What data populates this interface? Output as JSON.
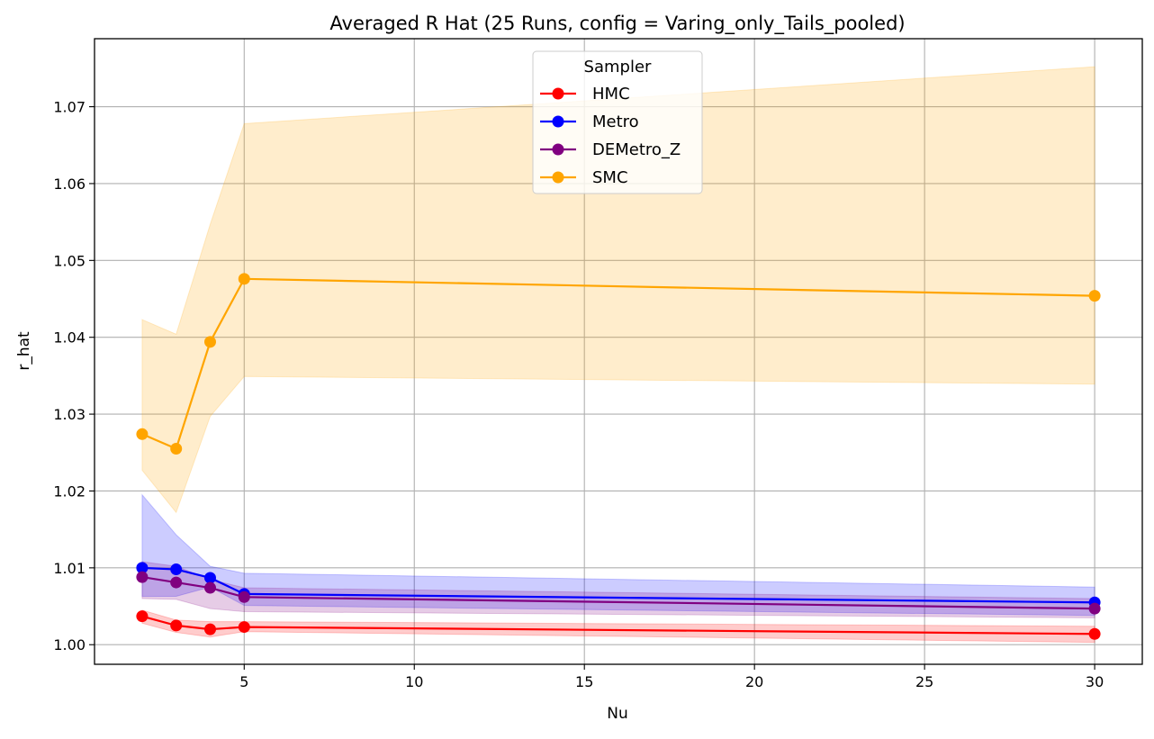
{
  "chart_data": {
    "type": "line",
    "title": "Averaged R Hat (25 Runs, config = Varing_only_Tails_pooled)",
    "xlabel": "Nu",
    "ylabel": "r_hat",
    "xlim": [
      0.6,
      31.4
    ],
    "ylim": [
      0.99745,
      1.07885
    ],
    "xticks": [
      5,
      10,
      15,
      20,
      25,
      30
    ],
    "xtick_labels": [
      "5",
      "10",
      "15",
      "20",
      "25",
      "30"
    ],
    "yticks": [
      1.0,
      1.01,
      1.02,
      1.03,
      1.04,
      1.05,
      1.06,
      1.07
    ],
    "ytick_labels": [
      "1.00",
      "1.01",
      "1.02",
      "1.03",
      "1.04",
      "1.05",
      "1.06",
      "1.07"
    ],
    "grid": true,
    "legend_title": "Sampler",
    "legend_position": "top-center",
    "x": [
      2,
      3,
      4,
      5,
      30
    ],
    "series": [
      {
        "name": "HMC",
        "color": "#ff0000",
        "values": [
          1.0037,
          1.0025,
          1.002,
          1.0023,
          1.0014
        ],
        "band_low": [
          1.0028,
          1.0016,
          1.001,
          1.0017,
          1.0003
        ],
        "band_high": [
          1.0045,
          1.0032,
          1.003,
          1.003,
          1.0024
        ]
      },
      {
        "name": "Metro",
        "color": "#0000ff",
        "values": [
          1.01,
          1.0098,
          1.0087,
          1.0066,
          1.0055
        ],
        "band_low": [
          1.0063,
          1.0063,
          1.0075,
          1.0051,
          1.0038
        ],
        "band_high": [
          1.0195,
          1.0143,
          1.0102,
          1.0093,
          1.0075
        ]
      },
      {
        "name": "DEMetro_Z",
        "color": "#800080",
        "values": [
          1.0088,
          1.0081,
          1.0074,
          1.0062,
          1.0047
        ],
        "band_low": [
          1.006,
          1.0059,
          1.0047,
          1.0043,
          1.0035
        ],
        "band_high": [
          1.0108,
          1.0102,
          1.0085,
          1.0074,
          1.006
        ]
      },
      {
        "name": "SMC",
        "color": "#ffa500",
        "values": [
          1.0274,
          1.0255,
          1.0394,
          1.0476,
          1.0454
        ],
        "band_low": [
          1.0227,
          1.0172,
          1.0297,
          1.0349,
          1.0339
        ],
        "band_high": [
          1.0423,
          1.0404,
          1.0547,
          1.0678,
          1.0752
        ]
      }
    ]
  }
}
